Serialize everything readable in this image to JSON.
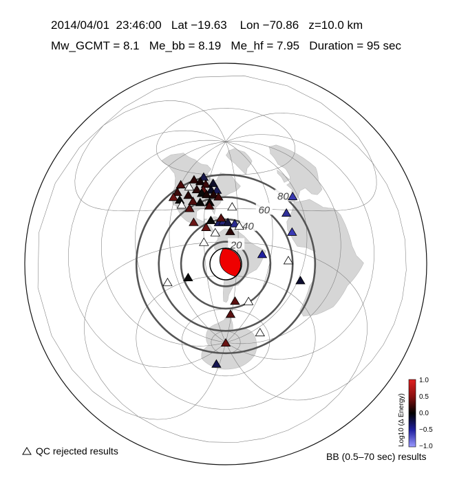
{
  "header": {
    "line1": "2014/04/01  23:46:00   Lat −19.63    Lon −70.86   z=10.0 km",
    "line2": "Mw_GCMT = 8.1   Me_bb = 8.19   Me_hf = 7.95   Duration = 95 sec"
  },
  "map": {
    "ring_labels": [
      "20",
      "40",
      "60",
      "80"
    ],
    "colors": {
      "ocean": "#ffffff",
      "land": "#d6d6d6",
      "ring": "#555555",
      "graticule": "#7a7a7a",
      "beachball": "#ee0000"
    }
  },
  "stations": [
    {
      "lon": -98,
      "lat": 58,
      "c": "#18184a"
    },
    {
      "lon": -108,
      "lat": 55,
      "c": "#2a0707"
    },
    {
      "lon": -100,
      "lat": 54,
      "c": "#140404"
    },
    {
      "lon": -93,
      "lat": 52,
      "c": "#3a0909"
    },
    {
      "lon": -85,
      "lat": 53,
      "c": "#10102a"
    },
    {
      "lon": -120,
      "lat": 50,
      "c": "#4a0c0c"
    },
    {
      "lon": -110,
      "lat": 49,
      "c": "#0a0a0a",
      "rejected": true
    },
    {
      "lon": -101,
      "lat": 47,
      "c": "#2a0a0a"
    },
    {
      "lon": -94,
      "lat": 47,
      "c": "#5a1010"
    },
    {
      "lon": -86,
      "lat": 47,
      "c": "#0a0a20"
    },
    {
      "lon": -80,
      "lat": 47,
      "c": "#1a1a55"
    },
    {
      "lon": -120,
      "lat": 44,
      "c": "#3b0a0a"
    },
    {
      "lon": -108,
      "lat": 42,
      "c": "#2a0808"
    },
    {
      "lon": -95,
      "lat": 44,
      "c": "#0a0a0a"
    },
    {
      "lon": -90,
      "lat": 43,
      "c": "#1a0505"
    },
    {
      "lon": -83,
      "lat": 43,
      "c": "#200505"
    },
    {
      "lon": -78,
      "lat": 41,
      "c": "#400a0a"
    },
    {
      "lon": -122,
      "lat": 40,
      "c": "#6a1414"
    },
    {
      "lon": -115,
      "lat": 38,
      "c": "#0a0a0a"
    },
    {
      "lon": -102,
      "lat": 37,
      "c": "#4d0d0d"
    },
    {
      "lon": -95,
      "lat": 36,
      "c": "#0a0a0a"
    },
    {
      "lon": -86,
      "lat": 36,
      "c": "#0a0a0a"
    },
    {
      "lon": -112,
      "lat": 34,
      "c": "#000000",
      "rejected": true
    },
    {
      "lon": -104,
      "lat": 31,
      "c": "#5a1010"
    },
    {
      "lon": -86,
      "lat": 33,
      "c": "#4a0c0c"
    },
    {
      "lon": -65,
      "lat": 32,
      "c": "#000000",
      "rejected": true
    },
    {
      "lon": -99,
      "lat": 19,
      "c": "#6a1616"
    },
    {
      "lon": -84,
      "lat": 20,
      "c": "#0a0a0a"
    },
    {
      "lon": -77,
      "lat": 18,
      "c": "#1e1e60"
    },
    {
      "lon": -73,
      "lat": 19,
      "c": "#25257a"
    },
    {
      "lon": -69,
      "lat": 18,
      "c": "#151540"
    },
    {
      "lon": -63,
      "lat": 17,
      "c": "#2a2a90"
    },
    {
      "lon": -59,
      "lat": 15,
      "c": "#000000",
      "rejected": true
    },
    {
      "lon": -75,
      "lat": 22,
      "c": "#5a1010"
    },
    {
      "lon": -88,
      "lat": 14,
      "c": "#6a1414"
    },
    {
      "lon": -80,
      "lat": 9,
      "c": "#000000",
      "rejected": true
    },
    {
      "lon": -67,
      "lat": 10,
      "c": "#2a0808"
    },
    {
      "lon": -90,
      "lat": 1,
      "c": "#000000",
      "rejected": true
    },
    {
      "lon": -38,
      "lat": -8,
      "c": "#2222a0"
    },
    {
      "lon": -16,
      "lat": 28,
      "c": "#30309a"
    },
    {
      "lon": -5,
      "lat": 40,
      "c": "#3838b0"
    },
    {
      "lon": -13,
      "lat": 14,
      "c": "#3a3ab5"
    },
    {
      "lon": -14,
      "lat": -8,
      "c": "#000000",
      "rejected": true
    },
    {
      "lon": 2,
      "lat": -18,
      "c": "#0e0e30"
    },
    {
      "lon": -109,
      "lat": -27,
      "c": "#0a0a0a"
    },
    {
      "lon": -130,
      "lat": -25,
      "c": "#000000",
      "rejected": true
    },
    {
      "lon": -58,
      "lat": -52,
      "c": "#5a1010"
    },
    {
      "lon": -40,
      "lat": -50,
      "c": "#000000",
      "rejected": true
    },
    {
      "lon": -62,
      "lat": -64,
      "c": "#5a1212"
    },
    {
      "lon": 10,
      "lat": -65,
      "c": "#000000",
      "rejected": true
    },
    {
      "lon": 0,
      "lat": -90,
      "c": "#6a1414"
    },
    {
      "lon": 125,
      "lat": -70,
      "c": "#151550"
    }
  ],
  "legend": {
    "rejected_label": "QC rejected results",
    "results_label": "BB (0.5–70 sec) results",
    "colorbar_title": "Log10 (Δ Energy)",
    "colorbar_ticks": [
      "1.0",
      "0.5",
      "0.0",
      "−0.5",
      "−1.0"
    ]
  }
}
